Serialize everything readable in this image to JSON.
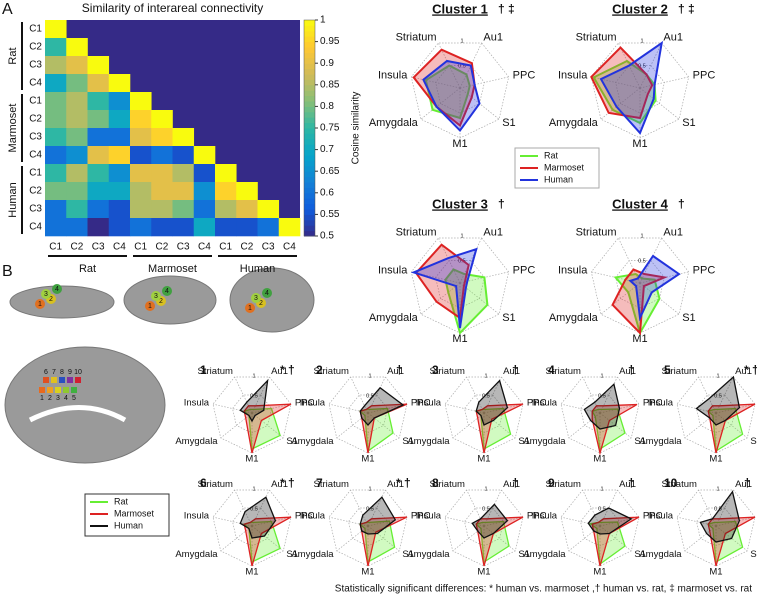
{
  "figure": {
    "panel_a": "A",
    "panel_b": "B",
    "brain_cluster_labels": [
      "1",
      "2",
      "3",
      "4"
    ],
    "footnote": "Statistically significant differences: * human vs. marmoset ,† human vs. rat, ‡ marmoset vs. rat"
  },
  "chart_data": [
    {
      "type": "heatmap",
      "title": "Similarity of interareal connectivity",
      "colorbar_label": "Cosine similarity",
      "groups": [
        "Rat",
        "Marmoset",
        "Human"
      ],
      "row_labels": [
        "C1",
        "C2",
        "C3",
        "C4",
        "C1",
        "C2",
        "C3",
        "C4",
        "C1",
        "C2",
        "C3",
        "C4"
      ],
      "col_labels": [
        "C1",
        "C2",
        "C3",
        "C4",
        "C1",
        "C2",
        "C3",
        "C4",
        "C1",
        "C2",
        "C3",
        "C4"
      ],
      "values": [
        [
          1,
          null,
          null,
          null,
          null,
          null,
          null,
          null,
          null,
          null,
          null,
          null
        ],
        [
          0.75,
          1,
          null,
          null,
          null,
          null,
          null,
          null,
          null,
          null,
          null,
          null
        ],
        [
          0.85,
          0.9,
          1,
          null,
          null,
          null,
          null,
          null,
          null,
          null,
          null,
          null
        ],
        [
          0.7,
          0.8,
          0.9,
          1,
          null,
          null,
          null,
          null,
          null,
          null,
          null,
          null
        ],
        [
          0.8,
          0.85,
          0.75,
          0.65,
          1,
          null,
          null,
          null,
          null,
          null,
          null,
          null
        ],
        [
          0.8,
          0.85,
          0.8,
          0.7,
          0.95,
          1,
          null,
          null,
          null,
          null,
          null,
          null
        ],
        [
          0.75,
          0.8,
          0.6,
          0.6,
          0.9,
          0.95,
          1,
          null,
          null,
          null,
          null,
          null
        ],
        [
          0.6,
          0.65,
          0.9,
          0.95,
          0.55,
          0.6,
          0.55,
          1,
          null,
          null,
          null,
          null
        ],
        [
          0.75,
          0.85,
          0.75,
          0.65,
          0.9,
          0.9,
          0.85,
          0.55,
          1,
          null,
          null,
          null
        ],
        [
          0.8,
          0.8,
          0.7,
          0.7,
          0.85,
          0.9,
          0.9,
          0.65,
          0.95,
          1,
          null,
          null
        ],
        [
          0.6,
          0.75,
          0.6,
          0.55,
          0.85,
          0.85,
          0.8,
          0.6,
          0.85,
          0.9,
          1,
          null
        ],
        [
          0.6,
          0.6,
          0.5,
          0.55,
          0.6,
          0.55,
          0.55,
          0.7,
          0.55,
          0.55,
          0.6,
          1
        ]
      ],
      "zlim": [
        0.5,
        1
      ],
      "zticks": [
        0.5,
        0.55,
        0.6,
        0.65,
        0.7,
        0.75,
        0.8,
        0.85,
        0.9,
        0.95,
        1
      ]
    },
    {
      "type": "radar",
      "axes": [
        "Au1",
        "PPC",
        "S1",
        "M1",
        "Amygdala",
        "Insula",
        "Striatum"
      ],
      "rlim": [
        0,
        1
      ],
      "rticks": [
        0.5,
        1
      ],
      "panels": [
        {
          "title": "Cluster 1",
          "annotation": "† ‡"
        },
        {
          "title": "Cluster 2",
          "annotation": "† ‡"
        },
        {
          "title": "Cluster 3",
          "annotation": "†"
        },
        {
          "title": "Cluster 4",
          "annotation": "†"
        }
      ],
      "series": [
        {
          "name": "Rat",
          "color": "#66ee33",
          "values": [
            [
              0.3,
              0.2,
              0.2,
              0.6,
              0.7,
              0.7,
              0.5
            ],
            [
              0.3,
              0.3,
              0.4,
              0.7,
              0.7,
              0.95,
              0.6
            ],
            [
              0.2,
              0.5,
              0.7,
              1,
              0.3,
              0.3,
              0.3
            ],
            [
              0.1,
              0.3,
              0.5,
              1,
              0.3,
              0.5,
              0.2
            ]
          ]
        },
        {
          "name": "Marmoset",
          "color": "#dd2222",
          "values": [
            [
              0.55,
              0.3,
              0.3,
              0.75,
              0.6,
              0.95,
              0.85
            ],
            [
              0.3,
              0.25,
              0.2,
              0.6,
              0.8,
              1,
              0.9
            ],
            [
              0.4,
              0.1,
              0.1,
              0.7,
              0.6,
              0.9,
              0.85
            ],
            [
              0.2,
              0.5,
              0.1,
              1,
              0.7,
              0.3,
              0.3
            ]
          ]
        },
        {
          "name": "Human",
          "color": "#2233dd",
          "values": [
            [
              0.5,
              0.3,
              0.5,
              0.85,
              0.6,
              0.75,
              0.6
            ],
            [
              1,
              0.3,
              0.35,
              0.9,
              0.6,
              0.8,
              0.5
            ],
            [
              0.75,
              0.15,
              0.15,
              0.9,
              0.1,
              0.95,
              0.55
            ],
            [
              0.6,
              0.8,
              0.3,
              0.7,
              0.1,
              0.2,
              0.1
            ]
          ]
        }
      ]
    },
    {
      "type": "radar",
      "axes": [
        "Au1",
        "PPC",
        "S1",
        "M1",
        "Amygdala",
        "Insula",
        "Striatum"
      ],
      "rlim": [
        0,
        1
      ],
      "rticks": [
        0.5,
        1
      ],
      "panels": [
        {
          "title": "1",
          "annotation": "* †"
        },
        {
          "title": "2",
          "annotation": "†"
        },
        {
          "title": "3",
          "annotation": "†"
        },
        {
          "title": "4",
          "annotation": "†"
        },
        {
          "title": "5",
          "annotation": "* †"
        },
        {
          "title": "6",
          "annotation": "* †"
        },
        {
          "title": "7",
          "annotation": "* †"
        },
        {
          "title": "8",
          "annotation": "†"
        },
        {
          "title": "9",
          "annotation": "†"
        },
        {
          "title": "10",
          "annotation": "†"
        }
      ],
      "series": [
        {
          "name": "Rat",
          "color": "#66ee33",
          "values": [
            [
              0.1,
              0.5,
              0.9,
              0.9,
              0.1,
              0.2,
              0.1
            ],
            [
              0.1,
              0.5,
              0.8,
              0.95,
              0.1,
              0.2,
              0.1
            ],
            [
              0.1,
              0.5,
              0.85,
              0.9,
              0.1,
              0.2,
              0.1
            ],
            [
              0.1,
              0.45,
              0.8,
              0.9,
              0.15,
              0.2,
              0.1
            ],
            [
              0.1,
              0.5,
              0.85,
              0.95,
              0.1,
              0.2,
              0.1
            ],
            [
              0.1,
              0.5,
              0.9,
              0.9,
              0.1,
              0.2,
              0.1
            ],
            [
              0.1,
              0.55,
              0.85,
              0.9,
              0.1,
              0.2,
              0.1
            ],
            [
              0.1,
              0.5,
              0.8,
              0.9,
              0.1,
              0.2,
              0.1
            ],
            [
              0.1,
              0.45,
              0.8,
              0.95,
              0.1,
              0.25,
              0.1
            ],
            [
              0.1,
              0.5,
              0.85,
              0.9,
              0.1,
              0.2,
              0.1
            ]
          ]
        },
        {
          "name": "Marmoset",
          "color": "#dd2222",
          "values": [
            [
              0.2,
              1,
              0.3,
              1,
              0.2,
              0.2,
              0.2
            ],
            [
              0.2,
              1,
              0.2,
              1,
              0.2,
              0.2,
              0.1
            ],
            [
              0.2,
              1,
              0.25,
              1,
              0.2,
              0.2,
              0.1
            ],
            [
              0.2,
              0.95,
              0.3,
              1,
              0.25,
              0.2,
              0.2
            ],
            [
              0.2,
              1,
              0.3,
              1,
              0.2,
              0.2,
              0.2
            ],
            [
              0.2,
              1,
              0.3,
              1,
              0.2,
              0.2,
              0.1
            ],
            [
              0.2,
              1,
              0.25,
              1,
              0.2,
              0.2,
              0.1
            ],
            [
              0.2,
              1,
              0.3,
              1,
              0.2,
              0.2,
              0.2
            ],
            [
              0.2,
              1,
              0.3,
              1,
              0.2,
              0.2,
              0.1
            ],
            [
              0.2,
              1,
              0.3,
              1,
              0.2,
              0.2,
              0.2
            ]
          ]
        },
        {
          "name": "Human",
          "color": "#111111",
          "values": [
            [
              0.9,
              0.3,
              0.1,
              0.2,
              0.1,
              0.3,
              0.3
            ],
            [
              0.7,
              0.9,
              0.2,
              0.3,
              0.2,
              0.2,
              0.2
            ],
            [
              0.9,
              0.6,
              0.3,
              0.3,
              0.1,
              0.2,
              0.3
            ],
            [
              0.8,
              0.5,
              0.5,
              0.4,
              0.3,
              0.4,
              0.3
            ],
            [
              1,
              0.6,
              0.3,
              0.3,
              0.2,
              0.5,
              0.4
            ],
            [
              0.8,
              0.6,
              0.4,
              0.3,
              0.1,
              0.3,
              0.4
            ],
            [
              0.8,
              0.7,
              0.3,
              0.2,
              0.2,
              0.2,
              0.3
            ],
            [
              0.6,
              0.6,
              0.3,
              0.3,
              0.2,
              0.3,
              0.2
            ],
            [
              0.5,
              0.8,
              0.3,
              0.2,
              0.2,
              0.3,
              0.3
            ],
            [
              0.95,
              0.6,
              0.5,
              0.4,
              0.3,
              0.4,
              0.2
            ]
          ]
        }
      ]
    }
  ]
}
